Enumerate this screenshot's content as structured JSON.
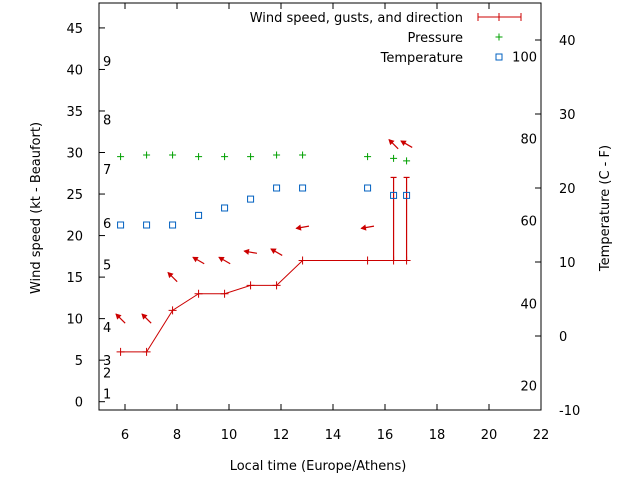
{
  "chart_data": {
    "type": "line",
    "xlabel": "Local time (Europe/Athens)",
    "ylabel": "Wind speed (kt - Beaufort)",
    "y2label": "Temperature (C - F)",
    "xlim": [
      5,
      22
    ],
    "ylim": [
      -1,
      48
    ],
    "y2lim": [
      -10,
      45
    ],
    "x_ticks": [
      6,
      8,
      10,
      12,
      14,
      16,
      18,
      20,
      22
    ],
    "y_ticks": [
      0,
      5,
      10,
      15,
      20,
      25,
      30,
      35,
      40,
      45
    ],
    "y2_ticks": [
      -10,
      0,
      10,
      20,
      30,
      40
    ],
    "fahrenheit_labels": [
      {
        "label": "20",
        "celsius": -6.7
      },
      {
        "label": "40",
        "celsius": 4.4
      },
      {
        "label": "60",
        "celsius": 15.6
      },
      {
        "label": "80",
        "celsius": 26.7
      },
      {
        "label": "100",
        "celsius": 37.8
      }
    ],
    "beaufort_labels": [
      {
        "label": "1",
        "kt": 1
      },
      {
        "label": "2",
        "kt": 3.5
      },
      {
        "label": "3",
        "kt": 5
      },
      {
        "label": "4",
        "kt": 9
      },
      {
        "label": "5",
        "kt": 16.5
      },
      {
        "label": "6",
        "kt": 21.5
      },
      {
        "label": "7",
        "kt": 28
      },
      {
        "label": "8",
        "kt": 34
      },
      {
        "label": "9",
        "kt": 41
      }
    ],
    "grid": false,
    "legend_placement": "top-right",
    "series": [
      {
        "name": "Wind speed, gusts, and direction",
        "color": "#cc0000",
        "marker": "plus",
        "x": [
          5.83,
          6.83,
          7.83,
          8.83,
          9.83,
          10.83,
          11.83,
          12.83,
          15.33,
          16.33,
          16.83
        ],
        "values": [
          6,
          6,
          11,
          13,
          13,
          14,
          14,
          17,
          17,
          17,
          17
        ],
        "gusts": [
          null,
          null,
          null,
          null,
          null,
          null,
          null,
          null,
          null,
          27,
          27
        ],
        "direction_deg": [
          135,
          135,
          135,
          120,
          120,
          100,
          120,
          80,
          80,
          135,
          120
        ],
        "arrow_y": [
          10,
          10,
          15,
          17,
          17,
          18,
          18,
          21,
          21,
          31,
          31
        ]
      },
      {
        "name": "Pressure",
        "color": "#00a000",
        "marker": "plus",
        "x": [
          5.83,
          6.83,
          7.83,
          8.83,
          9.83,
          10.83,
          11.83,
          12.83,
          15.33,
          16.33,
          16.83
        ],
        "values": [
          29.5,
          29.7,
          29.7,
          29.5,
          29.5,
          29.5,
          29.7,
          29.7,
          29.5,
          29.3,
          29.0
        ]
      },
      {
        "name": "Temperature",
        "color": "#0060c0",
        "marker": "square",
        "axis": "y2",
        "x": [
          5.83,
          6.83,
          7.83,
          8.83,
          9.83,
          10.83,
          11.83,
          12.83,
          15.33,
          16.33,
          16.83
        ],
        "values": [
          15,
          15,
          15,
          16.3,
          17.3,
          18.5,
          20,
          20,
          20,
          19,
          19
        ]
      }
    ]
  }
}
